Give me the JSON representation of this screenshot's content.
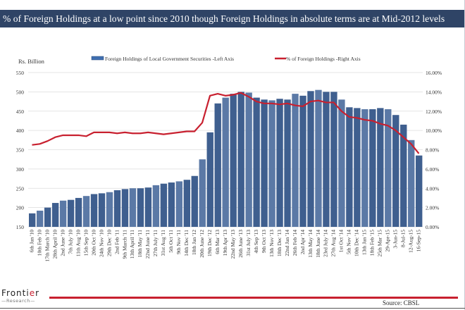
{
  "header": {
    "title": "% of Foreign Holdings at a low point since 2010 though Foreign Holdings in absolute terms are at Mid-2012 levels"
  },
  "footer": {
    "logo_main": "Frontier",
    "logo_sub": "Research",
    "source": "Source: CBSL"
  },
  "colors": {
    "bars": "#3f5f8f",
    "line": "#c8202f",
    "header": "#2f4466"
  },
  "chart_data": {
    "type": "bar+line",
    "title": "% of Foreign Holdings at a low point since 2010 though Foreign Holdings in absolute terms are at Mid-2012 levels",
    "ylabel": "Rs. Billion",
    "ylim": [
      150,
      550
    ],
    "y_ticks": [
      "150",
      "200",
      "250",
      "300",
      "350",
      "400",
      "450",
      "500",
      "550"
    ],
    "y2lim": [
      0,
      16
    ],
    "y2_ticks": [
      "0.00%",
      "2.00%",
      "4.00%",
      "6.00%",
      "8.00%",
      "10.00%",
      "12.00%",
      "14.00%",
      "16.00%"
    ],
    "grid": true,
    "legend_placement": "top",
    "categories": [
      "6th Jan '10",
      "10th Feb '10",
      "17th March '10",
      "28th April '10",
      "2nd June '10",
      "7th July '10",
      "11th Aug '10",
      "15th Sep '10",
      "20th Oct '10",
      "24th Nov '10",
      "29th Dec '10",
      "2nd Feb '11",
      "9th March '11",
      "13th April '11",
      "18th May '11",
      "22nd June '11",
      "27th July '11",
      "31st Aug '11",
      "5th Oct '11",
      "9th Nov '11",
      "14th Dec '11",
      "18th Jan '12",
      "20th June '12",
      "19th Dec '12",
      "6th Mar '13",
      "19th Apr '13",
      "22nd May '13",
      "26th June '13",
      "31st July '13",
      "4th Sep '13",
      "9th Oct '13",
      "13th Nov '13",
      "18th Dec '13",
      "22nd Jan '14",
      "26th Feb '14",
      "2nd Apr '14",
      "13th May '14",
      "18th June '14",
      "23rd July '14",
      "27th Aug '14",
      "1st Oct '14",
      "5th Nov '14",
      "10th Dec '14",
      "13th Jan '15",
      "18th Feb '15",
      "25th Mar '15",
      "29-Apr-15",
      "3-Jun-15",
      "8-Jul-15",
      "12-Aug-15",
      "16-Sep-15"
    ],
    "series": [
      {
        "name": "Foreign Holdings of Local Government Securities -Left Axis",
        "type": "bar",
        "axis": "left",
        "values": [
          185,
          192,
          200,
          212,
          218,
          220,
          225,
          230,
          235,
          237,
          240,
          245,
          248,
          250,
          250,
          252,
          258,
          262,
          265,
          268,
          272,
          282,
          325,
          395,
          470,
          485,
          495,
          500,
          498,
          485,
          480,
          478,
          482,
          480,
          495,
          490,
          502,
          505,
          500,
          500,
          480,
          460,
          458,
          455,
          455,
          458,
          455,
          440,
          415,
          375,
          335
        ]
      },
      {
        "name": "% of Foreign Holdings -Right Axis",
        "type": "line",
        "axis": "right",
        "values": [
          8.5,
          8.6,
          8.9,
          9.3,
          9.5,
          9.5,
          9.5,
          9.4,
          9.8,
          9.8,
          9.8,
          9.7,
          9.8,
          9.7,
          9.7,
          9.8,
          9.7,
          9.6,
          9.7,
          9.8,
          9.9,
          9.9,
          10.8,
          13.6,
          13.8,
          13.6,
          13.7,
          13.9,
          13.5,
          13.0,
          12.8,
          12.8,
          12.7,
          12.8,
          12.6,
          12.5,
          13.0,
          13.1,
          12.9,
          12.9,
          12.0,
          11.4,
          11.3,
          11.1,
          11.0,
          10.7,
          10.5,
          10.0,
          9.3,
          8.6,
          7.6
        ]
      }
    ]
  }
}
